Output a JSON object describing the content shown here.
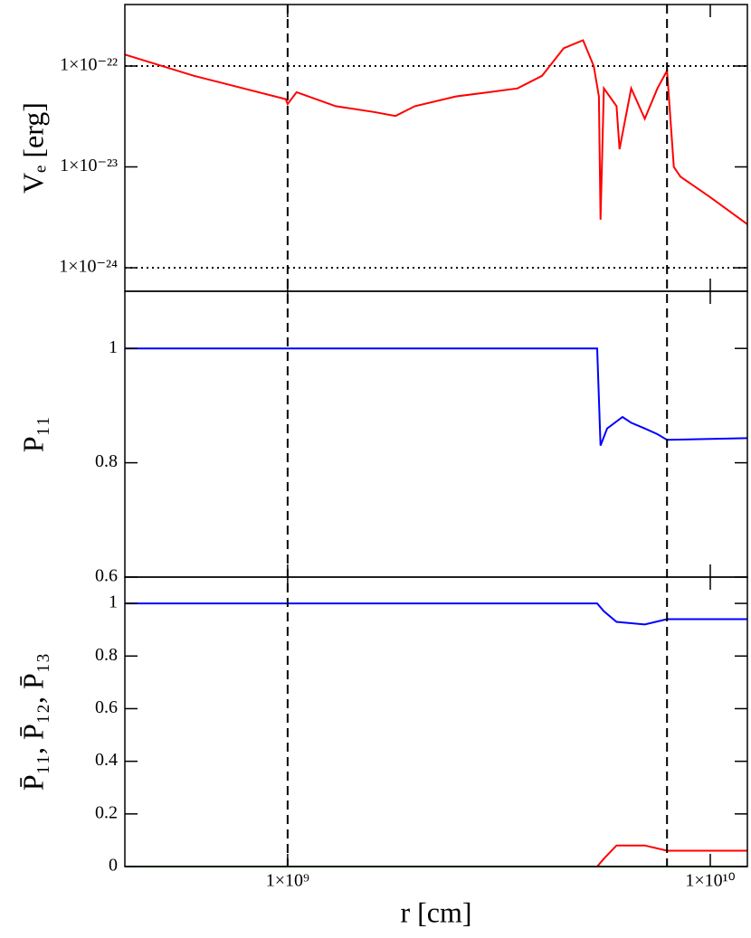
{
  "chart_data": {
    "type": "line",
    "xlabel": "r [cm]",
    "logx": true,
    "xlim": [
      412000000.0,
      12240000000.0
    ],
    "xticks": [
      {
        "value": 1000000000.0,
        "label": "1×10⁹"
      },
      {
        "value": 10000000000.0,
        "label": "1×10¹⁰"
      }
    ],
    "vlines": [
      1000000000.0,
      7900000000.0
    ],
    "panels": [
      {
        "ylabel": "Vₑ [erg]",
        "logy": true,
        "ylim": [
          5.85e-25,
          4.07e-22
        ],
        "yticks": [
          {
            "value": 1e-22,
            "label": "1×10⁻²²"
          },
          {
            "value": 1e-23,
            "label": "1×10⁻²³"
          },
          {
            "value": 1e-24,
            "label": "1×10⁻²⁴"
          }
        ],
        "hlines": [
          1e-22,
          1e-24
        ],
        "series": [
          {
            "color": "#ff0000",
            "x": [
              412000000.0,
              600000000.0,
              990000000.0,
              1000000000.0,
              1050000000.0,
              1300000000.0,
              1600000000.0,
              1800000000.0,
              2000000000.0,
              2500000000.0,
              3000000000.0,
              3500000000.0,
              4000000000.0,
              4500000000.0,
              5000000000.0,
              5300000000.0,
              5450000000.0,
              5500000000.0,
              5600000000.0,
              6000000000.0,
              6100000000.0,
              6500000000.0,
              7000000000.0,
              7500000000.0,
              7900000000.0,
              8200000000.0,
              8500000000.0,
              10000000000.0,
              12240000000.0
            ],
            "values": [
              1.3e-22,
              8e-23,
              4.7e-23,
              4.2e-23,
              5.5e-23,
              4e-23,
              3.5e-23,
              3.2e-23,
              4e-23,
              5e-23,
              5.5e-23,
              6e-23,
              8e-23,
              1.5e-22,
              1.8e-22,
              1e-22,
              5e-23,
              3e-24,
              6e-23,
              4e-23,
              1.5e-23,
              6e-23,
              3e-23,
              6e-23,
              9e-23,
              1e-23,
              8e-24,
              5e-24,
              2.7e-24
            ]
          }
        ]
      },
      {
        "ylabel": "P₁₁",
        "logy": false,
        "ylim": [
          0.6,
          1.1
        ],
        "yticks": [
          1,
          0.8,
          0.6
        ],
        "series": [
          {
            "color": "#0000ff",
            "x": [
              412000000.0,
              5400000000.0,
              5500000000.0,
              5700000000.0,
              6200000000.0,
              6500000000.0,
              7000000000.0,
              7500000000.0,
              7900000000.0,
              12240000000.0
            ],
            "values": [
              1,
              1,
              0.83,
              0.86,
              0.88,
              0.87,
              0.86,
              0.85,
              0.84,
              0.843
            ]
          }
        ]
      },
      {
        "ylabel": "P̄₁₁, P̄₁₂, P̄₁₃",
        "logy": false,
        "ylim": [
          0,
          1.1
        ],
        "yticks": [
          1,
          0.8,
          0.6,
          0.4,
          0.2,
          0
        ],
        "series": [
          {
            "color": "#0000ff",
            "x": [
              412000000.0,
              5400000000.0,
              5600000000.0,
              6000000000.0,
              7000000000.0,
              7900000000.0,
              12240000000.0
            ],
            "values": [
              1,
              1,
              0.97,
              0.93,
              0.92,
              0.94,
              0.94
            ]
          },
          {
            "color": "#ff0000",
            "x": [
              412000000.0,
              5400000000.0,
              5600000000.0,
              6000000000.0,
              7000000000.0,
              7900000000.0,
              12240000000.0
            ],
            "values": [
              0,
              0,
              0.03,
              0.08,
              0.08,
              0.06,
              0.06
            ]
          },
          {
            "color": "#008000",
            "x": [
              412000000.0,
              12240000000.0
            ],
            "values": [
              0,
              0
            ]
          }
        ]
      }
    ]
  }
}
